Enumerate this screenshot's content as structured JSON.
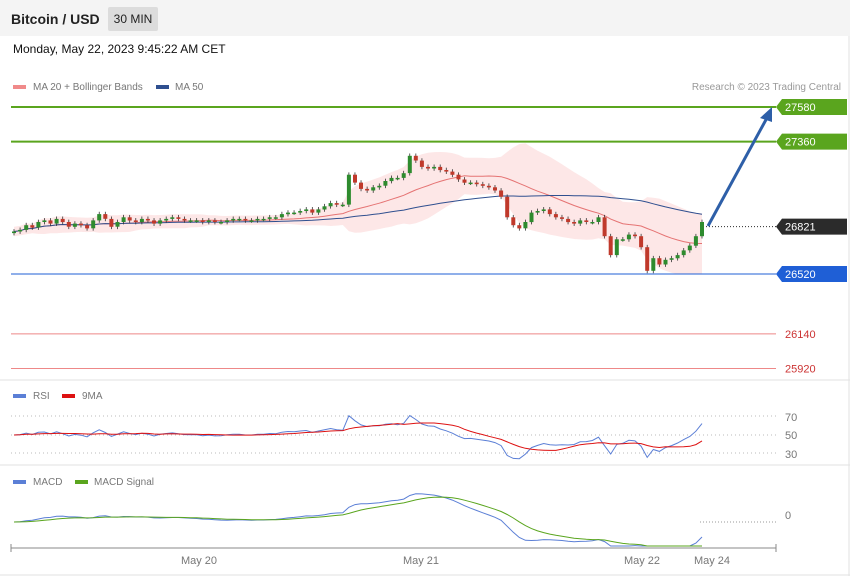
{
  "header": {
    "title": "Bitcoin / USD",
    "interval": "30 MIN"
  },
  "datetime": "Monday, May 22, 2023 9:45:22 AM CET",
  "colors": {
    "ma20": "#e57373",
    "ma50": "#2f4f8f",
    "bollinger_fill": "#fde1e1",
    "candle_up": "#2e8b2e",
    "candle_down": "#c0392b",
    "resistance": "#5aa51e",
    "support_blue": "#1f5fd6",
    "support_red": "#e88",
    "current": "#2b2b2b",
    "arrow": "#2e5fa8",
    "rsi": "#5b7fd6",
    "rsi_ma": "#d11",
    "macd": "#5b7fd6",
    "macd_signal": "#5aa51e"
  },
  "legend": {
    "ma20": "MA 20 + Bollinger Bands",
    "ma50": "MA 50",
    "copyright": "Research © 2023 Trading Central"
  },
  "levels": [
    {
      "label": "27580",
      "value": 27580,
      "kind": "resistance"
    },
    {
      "label": "27360",
      "value": 27360,
      "kind": "resistance"
    },
    {
      "label": "26821",
      "value": 26821,
      "kind": "current"
    },
    {
      "label": "26520",
      "value": 26520,
      "kind": "pivot"
    },
    {
      "label": "26140",
      "value": 26140,
      "kind": "support"
    },
    {
      "label": "25920",
      "value": 25920,
      "kind": "support"
    }
  ],
  "rsi": {
    "legend_rsi": "RSI",
    "legend_ma": "9MA",
    "ticks": [
      "70",
      "50",
      "30"
    ]
  },
  "macd": {
    "legend_macd": "MACD",
    "legend_signal": "MACD Signal",
    "zero_label": "0"
  },
  "x_axis": {
    "labels": [
      "May 20",
      "May 21",
      "May 22",
      "May 24"
    ]
  },
  "chart_data": {
    "type": "candlestick",
    "title": "Bitcoin / USD",
    "interval": "30 MIN",
    "ylim": [
      25850,
      27650
    ],
    "closes": [
      26790,
      26800,
      26830,
      26815,
      26850,
      26860,
      26840,
      26870,
      26850,
      26820,
      26840,
      26830,
      26810,
      26860,
      26900,
      26870,
      26820,
      26850,
      26880,
      26860,
      26850,
      26870,
      26860,
      26840,
      26860,
      26870,
      26880,
      26870,
      26860,
      26860,
      26860,
      26850,
      26860,
      26850,
      26850,
      26860,
      26870,
      26870,
      26860,
      26860,
      26870,
      26870,
      26880,
      26880,
      26900,
      26910,
      26910,
      26920,
      26930,
      26910,
      26930,
      26950,
      26970,
      26960,
      26960,
      27150,
      27100,
      27060,
      27050,
      27070,
      27080,
      27110,
      27130,
      27130,
      27160,
      27270,
      27240,
      27200,
      27190,
      27200,
      27180,
      27170,
      27150,
      27120,
      27100,
      27100,
      27090,
      27080,
      27070,
      27050,
      27010,
      26880,
      26830,
      26810,
      26850,
      26910,
      26920,
      26930,
      26900,
      26880,
      26870,
      26850,
      26840,
      26860,
      26850,
      26850,
      26880,
      26760,
      26640,
      26740,
      26740,
      26770,
      26760,
      26690,
      26540,
      26620,
      26580,
      26610,
      26620,
      26640,
      26670,
      26700,
      26760,
      26850
    ],
    "ma20_last": 26740,
    "ma50_last": 26880,
    "rsi_last": 50,
    "rsi_ylim": [
      20,
      80
    ],
    "macd_zero_level": 0
  }
}
